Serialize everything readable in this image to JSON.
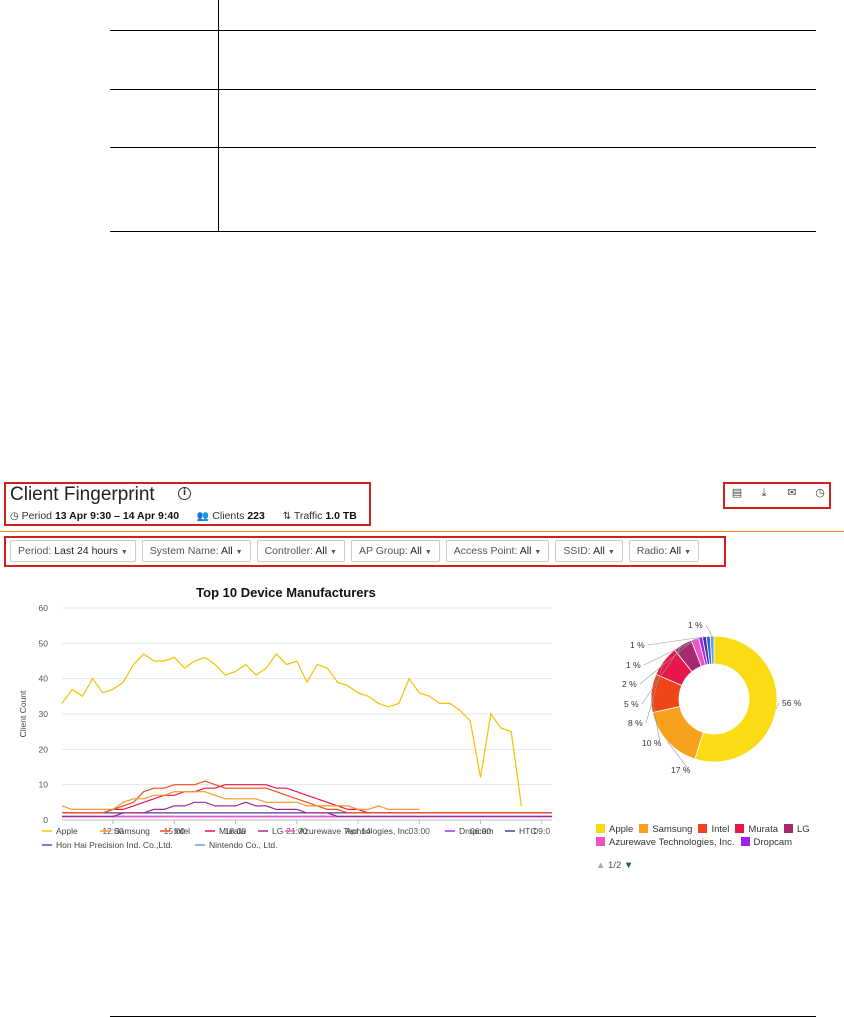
{
  "header": {
    "title": "Client Fingerprint",
    "period_label": "Period",
    "period_value": "13 Apr 9:30 – 14 Apr 9:40",
    "clients_label": "Clients",
    "clients_value": "223",
    "traffic_label": "Traffic",
    "traffic_value": "1.0 TB"
  },
  "toolbar": {
    "icons": [
      "document-icon",
      "download-icon",
      "email-icon",
      "clock-icon"
    ]
  },
  "filters": [
    {
      "label": "Period:",
      "value": "Last 24 hours"
    },
    {
      "label": "System Name:",
      "value": "All"
    },
    {
      "label": "Controller:",
      "value": "All"
    },
    {
      "label": "AP Group:",
      "value": "All"
    },
    {
      "label": "Access Point:",
      "value": "All"
    },
    {
      "label": "SSID:",
      "value": "All"
    },
    {
      "label": "Radio:",
      "value": "All"
    }
  ],
  "accent_color": "#f07b22",
  "highlight_color": "#d01f1f",
  "pager": {
    "up": "▲",
    "text": "1/2",
    "down": "▼"
  },
  "chart_data": [
    {
      "type": "line",
      "title": "Top 10 Device Manufacturers",
      "ylabel": "Client Count",
      "ylim": [
        0,
        60
      ],
      "yticks": [
        0,
        10,
        20,
        30,
        40,
        50,
        60
      ],
      "xticks": [
        "12:00",
        "15:00",
        "18:00",
        "21:00",
        "Apr 14",
        "03:00",
        "06:00",
        "09:0"
      ],
      "xtick_hours": [
        2.5,
        5.5,
        8.5,
        11.5,
        14.5,
        17.5,
        20.5,
        23.5
      ],
      "x_hours": [
        0,
        0.5,
        1,
        1.5,
        2,
        2.5,
        3,
        3.5,
        4,
        4.5,
        5,
        5.5,
        6,
        6.5,
        7,
        7.5,
        8,
        8.5,
        9,
        9.5,
        10,
        10.5,
        11,
        11.5,
        12,
        12.5,
        13,
        13.5,
        14,
        14.5,
        15,
        15.5,
        16,
        16.5,
        17,
        17.5,
        18,
        18.5,
        19,
        19.5,
        20,
        20.5,
        21,
        21.5,
        22,
        22.5,
        23,
        23.5,
        24
      ],
      "grid": true,
      "series": [
        {
          "name": "Apple",
          "color": "#f5c000",
          "values": [
            33,
            37,
            35,
            40,
            36,
            37,
            39,
            44,
            47,
            45,
            45,
            46,
            43,
            45,
            46,
            44,
            41,
            42,
            44,
            41,
            43,
            47,
            44,
            45,
            39,
            44,
            43,
            39,
            38,
            36,
            35,
            33,
            32,
            33,
            40,
            36,
            35,
            33,
            33,
            31,
            28,
            12,
            30,
            26,
            25,
            4,
            null,
            null,
            null
          ]
        },
        {
          "name": "Samsung",
          "color": "#f7962a",
          "values": [
            4,
            3,
            3,
            3,
            3,
            3,
            5,
            6,
            6,
            7,
            7,
            8,
            8,
            8,
            8,
            7,
            6,
            6,
            6,
            6,
            5,
            5,
            5,
            5,
            4,
            4,
            4,
            4,
            4,
            3,
            3,
            4,
            3,
            3,
            3,
            3,
            null,
            null,
            null,
            null,
            null,
            null,
            null,
            null,
            null,
            null,
            null,
            null,
            null
          ]
        },
        {
          "name": "Intel",
          "color": "#ee4d1b",
          "values": [
            2,
            2,
            2,
            2,
            2,
            3,
            4,
            5,
            8,
            9,
            9,
            10,
            10,
            10,
            11,
            10,
            9,
            9,
            9,
            9,
            9,
            8,
            7,
            6,
            5,
            4,
            3,
            3,
            2,
            2,
            2,
            2,
            2,
            2,
            2,
            2,
            2,
            2,
            2,
            2,
            2,
            2,
            2,
            2,
            2,
            2,
            2,
            2,
            2
          ]
        },
        {
          "name": "Murata",
          "color": "#e8174a",
          "values": [
            2,
            2,
            2,
            2,
            2,
            3,
            3,
            4,
            5,
            6,
            7,
            7,
            8,
            8,
            9,
            9,
            10,
            10,
            10,
            10,
            10,
            9,
            9,
            8,
            7,
            6,
            5,
            4,
            3,
            3,
            2,
            2,
            2,
            2,
            2,
            2,
            2,
            2,
            2,
            2,
            2,
            2,
            2,
            2,
            2,
            2,
            2,
            2,
            2
          ]
        },
        {
          "name": "LG",
          "color": "#a52b8b",
          "values": [
            1,
            1,
            1,
            1,
            1,
            1,
            2,
            2,
            2,
            3,
            3,
            4,
            4,
            5,
            5,
            4,
            4,
            4,
            5,
            4,
            4,
            3,
            3,
            3,
            2,
            2,
            2,
            1,
            1,
            1,
            1,
            1,
            1,
            1,
            1,
            1,
            1,
            1,
            1,
            1,
            1,
            1,
            1,
            1,
            1,
            1,
            1,
            1,
            1
          ]
        },
        {
          "name": "Azurewave Technologies, Inc.",
          "color": "#f252c7",
          "values": [
            1,
            1,
            1,
            1,
            1,
            1,
            1,
            1,
            1,
            1,
            1,
            1,
            1,
            1,
            1,
            1,
            1,
            1,
            1,
            1,
            1,
            1,
            1,
            1,
            1,
            1,
            1,
            1,
            1,
            1,
            1,
            1,
            1,
            1,
            1,
            1,
            1,
            1,
            1,
            1,
            1,
            1,
            1,
            1,
            1,
            1,
            1,
            1,
            1
          ]
        },
        {
          "name": "Dropcam",
          "color": "#9b30ff",
          "values": [
            1,
            1,
            1,
            1,
            1,
            1,
            1,
            1,
            1,
            1,
            1,
            1,
            1,
            1,
            1,
            1,
            1,
            1,
            1,
            1,
            1,
            1,
            1,
            1,
            1,
            1,
            1,
            1,
            1,
            1,
            1,
            1,
            1,
            1,
            1,
            1,
            1,
            1,
            1,
            1,
            1,
            1,
            1,
            1,
            1,
            1,
            1,
            1,
            1
          ]
        },
        {
          "name": "HTC",
          "color": "#5a3a8e",
          "values": [
            2,
            2,
            2,
            2,
            2,
            2,
            2,
            2,
            2,
            2,
            2,
            2,
            2,
            2,
            2,
            2,
            2,
            2,
            2,
            2,
            2,
            2,
            2,
            2,
            2,
            2,
            2,
            2,
            2,
            2,
            2,
            2,
            2,
            2,
            2,
            2,
            2,
            2,
            2,
            2,
            2,
            2,
            2,
            2,
            2,
            2,
            2,
            2,
            2
          ]
        },
        {
          "name": "Hon Hai Precision Ind. Co.,Ltd.",
          "color": "#3b5fd6",
          "values": [
            1,
            1,
            1,
            1,
            1,
            1,
            1,
            1,
            1,
            1,
            1,
            1,
            1,
            1,
            1,
            1,
            1,
            1,
            1,
            1,
            1,
            1,
            1,
            1,
            1,
            1,
            1,
            1,
            1,
            1,
            1,
            1,
            1,
            1,
            1,
            1,
            1,
            1,
            1,
            1,
            1,
            1,
            1,
            1,
            1,
            1,
            1,
            1,
            1
          ]
        },
        {
          "name": "Nintendo Co., Ltd.",
          "color": "#5aa3e8",
          "values": [
            1,
            1,
            1,
            1,
            1,
            1,
            1,
            1,
            1,
            1,
            1,
            1,
            1,
            1,
            1,
            1,
            1,
            1,
            1,
            1,
            1,
            1,
            1,
            1,
            1,
            1,
            1,
            1,
            1,
            1,
            1,
            1,
            1,
            1,
            1,
            1,
            1,
            1,
            1,
            1,
            1,
            1,
            1,
            1,
            1,
            1,
            1,
            1,
            1
          ]
        }
      ],
      "legend": "bottom"
    },
    {
      "type": "pie",
      "donut": true,
      "slices": [
        {
          "name": "Apple",
          "value": 56,
          "label": "56 %",
          "color": "#fadb14"
        },
        {
          "name": "Samsung",
          "value": 17,
          "label": "17 %",
          "color": "#f7a11c"
        },
        {
          "name": "Intel",
          "value": 10,
          "label": "10 %",
          "color": "#f0441b"
        },
        {
          "name": "Murata",
          "value": 8,
          "label": "8 %",
          "color": "#e8174a"
        },
        {
          "name": "LG",
          "value": 5,
          "label": "5 %",
          "color": "#a52b6f"
        },
        {
          "name": "Azurewave Technologies, Inc.",
          "value": 2,
          "label": "2 %",
          "color": "#f252c7"
        },
        {
          "name": "Dropcam",
          "value": 1,
          "label": "1 %",
          "color": "#a020f0"
        },
        {
          "name": "HTC",
          "value": 1,
          "label": "1 %",
          "color": "#4b2ea0"
        },
        {
          "name": "Hon Hai Precision Ind. Co.,Ltd.",
          "value": 1,
          "label": "",
          "color": "#3b5fd6"
        },
        {
          "name": "Nintendo Co., Ltd.",
          "value": 1,
          "label": "1 %",
          "color": "#5aa3e8"
        }
      ],
      "legend_visible": [
        "Apple",
        "Samsung",
        "Intel",
        "Murata",
        "LG",
        "Azurewave Technologies, Inc.",
        "Dropcam"
      ],
      "legend": "bottom"
    }
  ]
}
